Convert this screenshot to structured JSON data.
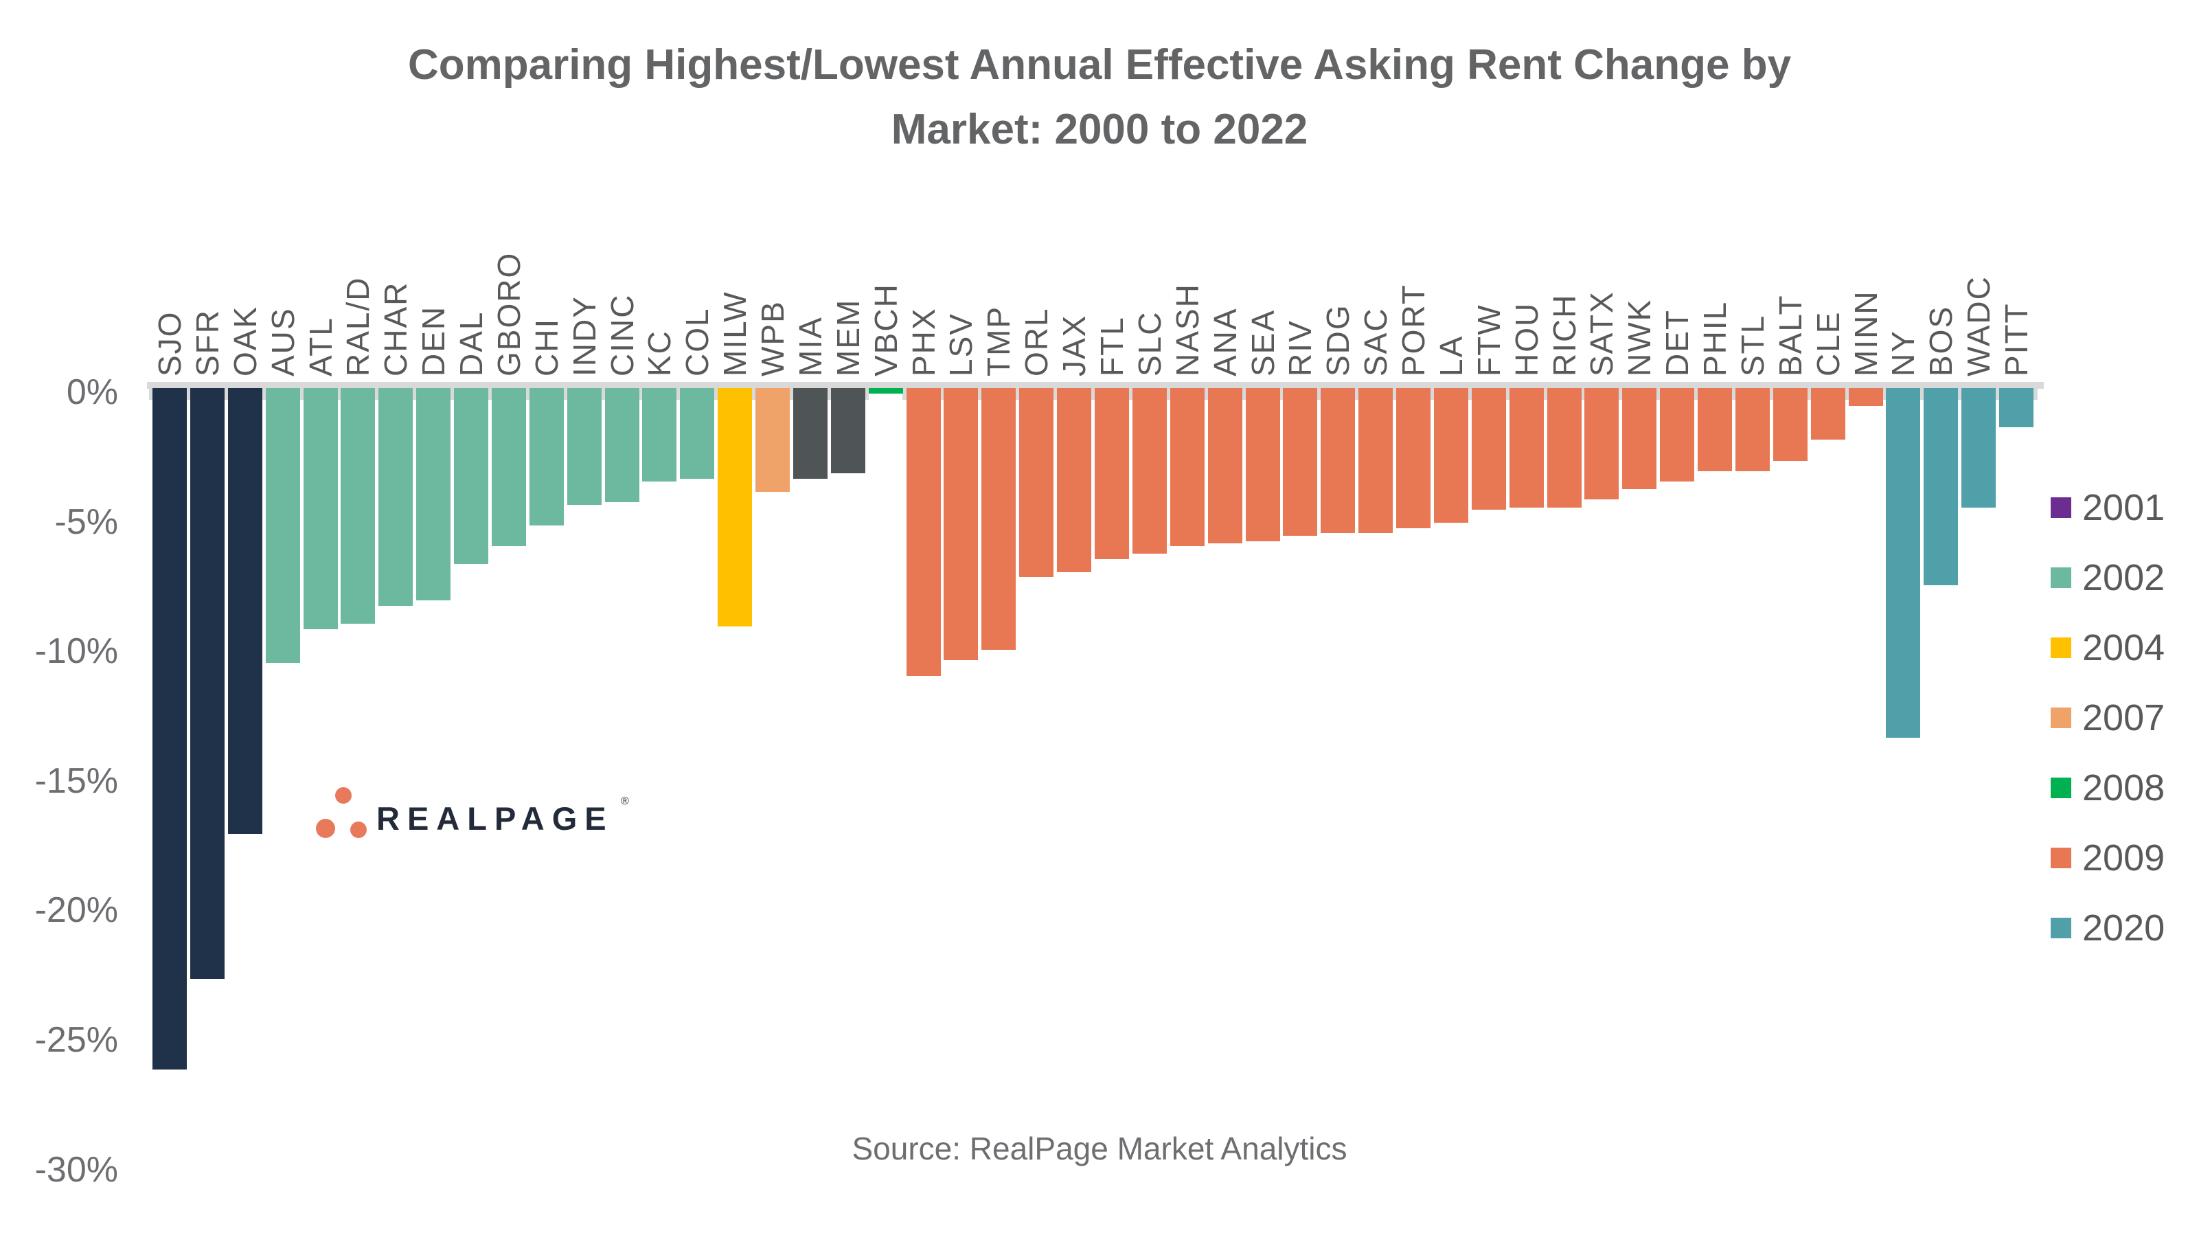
{
  "title": {
    "line1": "Comparing Highest/Lowest Annual Effective Asking Rent Change by",
    "line2": "Market: 2000 to 2022"
  },
  "source_note": "Source: RealPage Market Analytics",
  "logo": {
    "text": "REALPAGE",
    "registered": "®",
    "dot_color": "#E8795B",
    "text_color": "#232A3A"
  },
  "palette": {
    "navy": "#1F3249",
    "teal": "#6CB9A0",
    "gold": "#FFC000",
    "peach": "#F0A368",
    "gray": "#4F5456",
    "green": "#00B151",
    "coral": "#E87853",
    "tealblue": "#4FA0A8",
    "purple": "#6B2D90",
    "axis_gray": "#D9D9D9",
    "text_gray": "#6D6E71",
    "label_gray": "#58595B"
  },
  "legend": [
    {
      "year": "2001",
      "color": "#6B2D90"
    },
    {
      "year": "2002",
      "color": "#6CB9A0"
    },
    {
      "year": "2004",
      "color": "#FFC000"
    },
    {
      "year": "2007",
      "color": "#F0A368"
    },
    {
      "year": "2008",
      "color": "#00B151"
    },
    {
      "year": "2009",
      "color": "#E87853"
    },
    {
      "year": "2020",
      "color": "#4FA0A8"
    }
  ],
  "chart_data": {
    "type": "bar",
    "title": "Comparing Highest/Lowest Annual Effective Asking Rent Change by Market: 2000 to 2022",
    "xlabel": "",
    "ylabel": "",
    "ylim": [
      -30,
      0
    ],
    "grid": false,
    "legend_position": "right",
    "y_ticks": [
      "0%",
      "-5%",
      "-10%",
      "-15%",
      "-20%",
      "-25%",
      "-30%"
    ],
    "categories": [
      "SJO",
      "SFR",
      "OAK",
      "AUS",
      "ATL",
      "RAL/D",
      "CHAR",
      "DEN",
      "DAL",
      "GBORO",
      "CHI",
      "INDY",
      "CINC",
      "KC",
      "COL",
      "MILW",
      "WPB",
      "MIA",
      "MEM",
      "VBCH",
      "PHX",
      "LSV",
      "TMP",
      "ORL",
      "JAX",
      "FTL",
      "SLC",
      "NASH",
      "ANA",
      "SEA",
      "RIV",
      "SDG",
      "SAC",
      "PORT",
      "LA",
      "FTW",
      "HOU",
      "RICH",
      "SATX",
      "NWK",
      "DET",
      "PHIL",
      "STL",
      "BALT",
      "CLE",
      "MINN",
      "NY",
      "BOS",
      "WADC",
      "PITT"
    ],
    "values": [
      -26.3,
      -22.8,
      -17.2,
      -10.6,
      -9.3,
      -9.1,
      -8.4,
      -8.2,
      -6.8,
      -6.1,
      -5.3,
      -4.5,
      -4.4,
      -3.6,
      -3.5,
      -9.2,
      -4.0,
      -3.5,
      -3.3,
      -0.2,
      -11.1,
      -10.5,
      -10.1,
      -7.3,
      -7.1,
      -6.6,
      -6.4,
      -6.1,
      -6.0,
      -5.9,
      -5.7,
      -5.6,
      -5.6,
      -5.4,
      -5.2,
      -4.7,
      -4.6,
      -4.6,
      -4.3,
      -3.9,
      -3.6,
      -3.2,
      -3.2,
      -2.8,
      -2.0,
      -0.7,
      -13.5,
      -7.6,
      -4.6,
      -1.5
    ],
    "bar_color_keys": [
      "navy",
      "navy",
      "navy",
      "teal",
      "teal",
      "teal",
      "teal",
      "teal",
      "teal",
      "teal",
      "teal",
      "teal",
      "teal",
      "teal",
      "teal",
      "gold",
      "peach",
      "gray",
      "gray",
      "green",
      "coral",
      "coral",
      "coral",
      "coral",
      "coral",
      "coral",
      "coral",
      "coral",
      "coral",
      "coral",
      "coral",
      "coral",
      "coral",
      "coral",
      "coral",
      "coral",
      "coral",
      "coral",
      "coral",
      "coral",
      "coral",
      "coral",
      "coral",
      "coral",
      "coral",
      "coral",
      "tealblue",
      "tealblue",
      "tealblue",
      "tealblue"
    ]
  }
}
